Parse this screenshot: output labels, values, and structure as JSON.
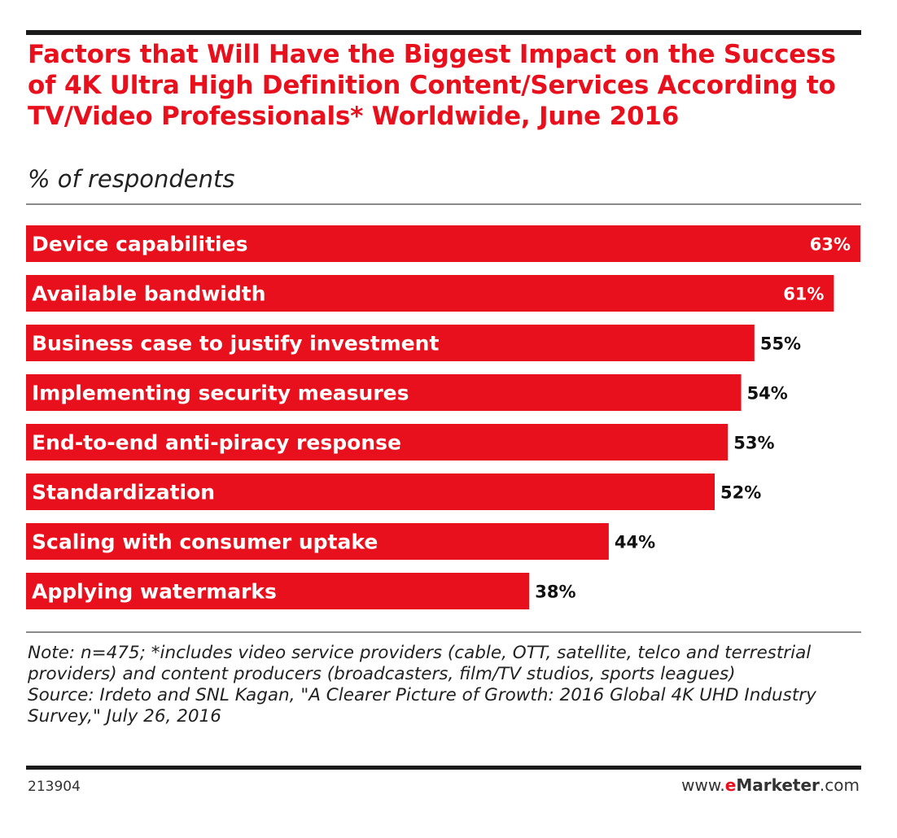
{
  "title": "Factors that Will Have the Biggest Impact on the Success of 4K Ultra High Definition Content/Services According to TV/Video Professionals* Worldwide, June 2016",
  "subtitle": "% of respondents",
  "colors": {
    "brand_red": "#e8101c",
    "text_dark": "#222222",
    "rule": "#1a1a1a"
  },
  "chart_data": {
    "type": "bar",
    "orientation": "horizontal",
    "categories": [
      "Device capabilities",
      "Available bandwidth",
      "Business case to justify investment",
      "Implementing security measures",
      "End-to-end anti-piracy response",
      "Standardization",
      "Scaling with consumer uptake",
      "Applying watermarks"
    ],
    "values": [
      63,
      61,
      55,
      54,
      53,
      52,
      44,
      38
    ],
    "value_labels": [
      "63%",
      "61%",
      "55%",
      "54%",
      "53%",
      "52%",
      "44%",
      "38%"
    ],
    "unit": "%",
    "xlim": [
      0,
      63
    ],
    "grid": false,
    "bar_color": "#e8101c"
  },
  "note": "Note: n=475; *includes video service providers (cable, OTT, satellite, telco and terrestrial providers) and content producers (broadcasters, film/TV studios, sports leagues)",
  "source": "Source: Irdeto and SNL Kagan, \"A Clearer Picture of Growth: 2016 Global 4K UHD Industry Survey,\" July 26, 2016",
  "footer": {
    "chart_id": "213904",
    "brand_prefix": "www.",
    "brand_e": "e",
    "brand_name": "Marketer",
    "brand_suffix": ".com"
  }
}
